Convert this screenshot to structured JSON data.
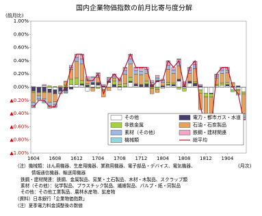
{
  "chart_data": {
    "type": "bar",
    "stacked": true,
    "title": "国内企業物価指数の前月比寄与度分解",
    "y_label": "(前月比)",
    "x_label": "(月次)",
    "categories": [
      "1604",
      null,
      null,
      null,
      "1608",
      null,
      null,
      null,
      "1612",
      null,
      null,
      null,
      "1704",
      null,
      null,
      null,
      "1708",
      null,
      null,
      null,
      "1712",
      null,
      null,
      null,
      "1804",
      null,
      null,
      null,
      "1808",
      null,
      null,
      null,
      "1812",
      null,
      null,
      null,
      "1904",
      null,
      null,
      null
    ],
    "ylim": [
      -1.0,
      1.0
    ],
    "yticks": [
      {
        "value": 1.0,
        "label": "1.00%"
      },
      {
        "value": 0.8,
        "label": "0.80%"
      },
      {
        "value": 0.6,
        "label": "0.60%"
      },
      {
        "value": 0.4,
        "label": "0.40%"
      },
      {
        "value": 0.2,
        "label": "0.20%"
      },
      {
        "value": 0,
        "label": "0.00%"
      },
      {
        "value": -0.2,
        "label": "▲0.20%"
      },
      {
        "value": -0.4,
        "label": "▲0.40%"
      },
      {
        "value": -0.6,
        "label": "▲0.60%"
      },
      {
        "value": -0.8,
        "label": "▲0.80%"
      },
      {
        "value": -1.0,
        "label": "▲1.00%"
      }
    ],
    "negative_tick_color": "#e00000",
    "series": [
      {
        "name": "その他",
        "color": "#ffffff",
        "values": [
          0.01,
          0.0,
          0.02,
          -0.03,
          -0.04,
          -0.01,
          0.0,
          0.04,
          0.04,
          0.03,
          -0.06,
          0.04,
          0.03,
          -0.03,
          0.07,
          0.01,
          -0.04,
          0.01,
          0.07,
          0.02,
          0.01,
          0.01,
          0.01,
          0.08,
          -0.02,
          0.03,
          0.02,
          0.09,
          -0.02,
          0.06,
          0.02,
          -0.04,
          -0.09,
          -0.09,
          0.02,
          0.03,
          0.02,
          -0.04,
          -0.03,
          -0.07
        ]
      },
      {
        "name": "電力・都市ガス・水道",
        "color": "#4a3d6e",
        "values": [
          -0.06,
          -0.08,
          -0.07,
          -0.05,
          -0.06,
          -0.05,
          -0.06,
          -0.03,
          0.0,
          0.02,
          0.03,
          0.03,
          0.04,
          0.02,
          0.02,
          0.03,
          0.01,
          0.0,
          0.02,
          0.03,
          0.03,
          0.04,
          0.03,
          0.02,
          0.02,
          0.01,
          0.02,
          0.03,
          0.02,
          0.03,
          0.04,
          0.02,
          0.0,
          -0.01,
          0.0,
          0.0,
          0.02,
          0.01,
          0.02,
          0.0
        ]
      },
      {
        "name": "非鉄金属",
        "color": "#a6d23c",
        "values": [
          -0.02,
          0.0,
          -0.01,
          0.02,
          0.01,
          0.0,
          0.03,
          0.08,
          0.1,
          0.05,
          0.02,
          -0.01,
          -0.02,
          -0.02,
          0.0,
          0.05,
          0.03,
          0.04,
          0.06,
          0.0,
          0.0,
          0.04,
          -0.02,
          -0.03,
          0.0,
          0.03,
          0.02,
          -0.03,
          -0.04,
          0.0,
          0.02,
          -0.05,
          -0.06,
          -0.05,
          0.02,
          0.03,
          0.03,
          -0.03,
          -0.02,
          -0.03
        ]
      },
      {
        "name": "石油・石炭製品",
        "color": "#e9a25c",
        "values": [
          -0.15,
          -0.05,
          -0.1,
          -0.15,
          -0.12,
          0.02,
          0.05,
          0.15,
          0.25,
          0.25,
          0.05,
          -0.05,
          0.08,
          -0.1,
          -0.05,
          0.05,
          0.05,
          0.15,
          0.2,
          0.15,
          0.15,
          0.12,
          -0.08,
          -0.05,
          0.05,
          0.2,
          0.15,
          0.2,
          0.02,
          0.12,
          0.2,
          -0.25,
          -0.4,
          -0.35,
          0.1,
          0.15,
          0.15,
          0.05,
          -0.05,
          -0.3
        ]
      },
      {
        "name": "素材（その他）",
        "color": "#9fb9e3",
        "values": [
          -0.05,
          -0.05,
          -0.04,
          -0.05,
          -0.05,
          -0.03,
          -0.02,
          0.03,
          0.06,
          0.08,
          0.02,
          0.03,
          0.03,
          0.0,
          0.02,
          0.03,
          0.02,
          0.05,
          0.08,
          0.05,
          0.05,
          0.06,
          0.03,
          0.04,
          0.03,
          0.06,
          0.05,
          0.06,
          0.02,
          0.05,
          0.06,
          0.0,
          -0.05,
          -0.08,
          0.03,
          0.05,
          0.04,
          0.0,
          -0.02,
          -0.06
        ]
      },
      {
        "name": "鉄鋼・建材関連",
        "color": "#f3a6c8",
        "values": [
          -0.02,
          0.0,
          0.02,
          -0.02,
          -0.02,
          0.0,
          0.01,
          0.03,
          0.05,
          0.06,
          0.04,
          0.05,
          0.03,
          0.02,
          0.03,
          0.03,
          0.03,
          0.04,
          0.06,
          0.04,
          0.05,
          0.03,
          0.03,
          0.04,
          0.02,
          0.05,
          0.04,
          0.04,
          0.02,
          0.03,
          0.04,
          0.02,
          0.0,
          -0.02,
          0.02,
          0.03,
          0.03,
          0.01,
          0.0,
          -0.03
        ]
      },
      {
        "name": "機械類",
        "color": "#8fd6df",
        "values": [
          -0.01,
          -0.02,
          -0.02,
          -0.02,
          -0.02,
          -0.01,
          -0.01,
          0.0,
          0.0,
          0.01,
          0.0,
          0.01,
          0.01,
          0.0,
          0.01,
          0.0,
          0.0,
          0.01,
          0.01,
          0.01,
          0.01,
          0.0,
          0.0,
          0.0,
          0.0,
          0.02,
          0.0,
          0.01,
          0.0,
          0.01,
          0.01,
          0.0,
          0.0,
          0.0,
          0.01,
          0.01,
          0.01,
          0.0,
          0.0,
          -0.01
        ]
      },
      {
        "name": "総平均",
        "type": "line",
        "color": "#c0102a",
        "values": [
          -0.3,
          -0.2,
          -0.2,
          -0.3,
          -0.3,
          -0.1,
          0.0,
          0.3,
          0.5,
          0.5,
          0.1,
          0.1,
          0.2,
          -0.1,
          0.1,
          0.2,
          0.1,
          0.3,
          0.5,
          0.3,
          0.3,
          0.3,
          0.0,
          0.1,
          0.1,
          0.4,
          0.3,
          0.4,
          0.0,
          0.3,
          0.4,
          -0.3,
          -0.6,
          -0.6,
          0.2,
          0.3,
          0.3,
          0.0,
          -0.1,
          -0.5
        ]
      }
    ]
  },
  "notes": [
    "（注）機械類：はん用機器、生産用機器、業務用機器、電子部品・デバイス、電気機器、",
    "情報通信機器、輸送用機器",
    "鉄鋼・建材関連：鉄鋼、金属製品、窯業・土石製品、木材・木製品、スクラップ類",
    "素材（その他）：化学製品、プラスチック製品、繊維製品、パルプ・紙・同製品",
    "その他：その他工業製品、農林水産物、鉱産物",
    "（資料）日本銀行「企業物価指数」",
    "（注）夏季電力料金調整後の数値"
  ]
}
